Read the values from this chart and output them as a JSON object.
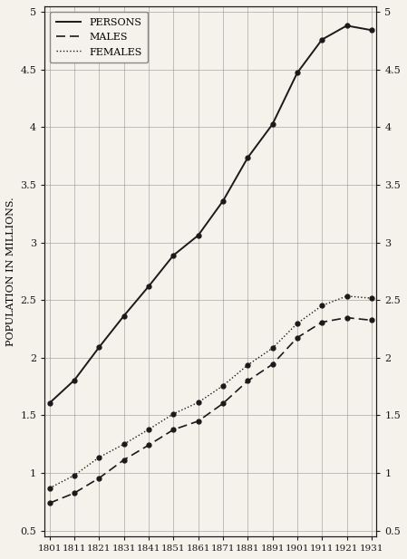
{
  "years": [
    1801,
    1811,
    1821,
    1831,
    1841,
    1851,
    1861,
    1871,
    1881,
    1891,
    1901,
    1911,
    1921,
    1931
  ],
  "persons": [
    1.608,
    1.806,
    2.092,
    2.364,
    2.62,
    2.889,
    3.062,
    3.36,
    3.736,
    4.026,
    4.472,
    4.761,
    4.882,
    4.843
  ],
  "males": [
    0.739,
    0.826,
    0.956,
    1.114,
    1.242,
    1.376,
    1.45,
    1.603,
    1.799,
    1.943,
    2.174,
    2.309,
    2.348,
    2.326
  ],
  "females": [
    0.869,
    0.98,
    1.136,
    1.25,
    1.378,
    1.513,
    1.612,
    1.757,
    1.937,
    2.083,
    2.298,
    2.452,
    2.535,
    2.517
  ],
  "ylabel": "POPULATION IN MILLIONS.",
  "ylim": [
    0.5,
    5.0
  ],
  "xlim": [
    1801,
    1931
  ],
  "yticks": [
    0.5,
    1.0,
    1.5,
    2.0,
    2.5,
    3.0,
    3.5,
    4.0,
    4.5,
    5.0
  ],
  "ytick_labels": [
    "0.5",
    "1",
    "1.5",
    "2",
    "2.5",
    "3",
    "3.5",
    "4",
    "4.5",
    "5"
  ],
  "bg_color": "#f5f2ec",
  "line_color": "#1a1a1a",
  "legend_persons": "PERSONS",
  "legend_males": "MALES",
  "legend_females": "FEMALES"
}
